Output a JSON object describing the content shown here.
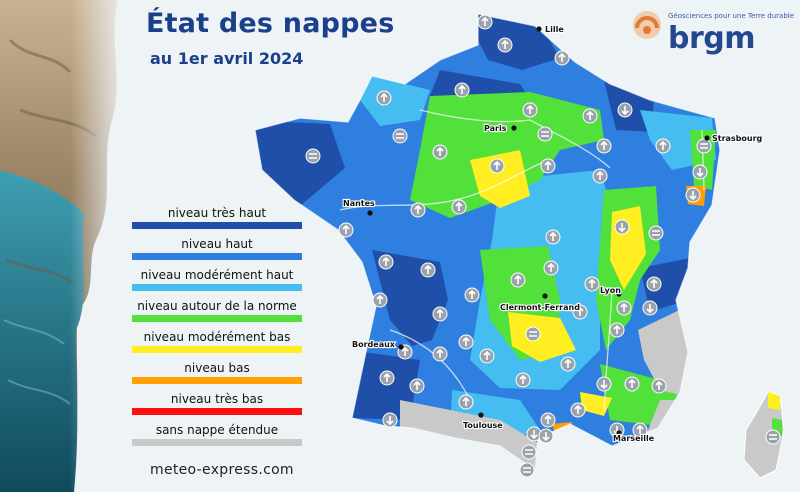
{
  "title": "État des nappes",
  "subtitle": "au 1er avril 2024",
  "logo": {
    "tagline": "Géosciences pour une Terre durable",
    "name": "brgm"
  },
  "website": "meteo-express.com",
  "colors": {
    "tres_haut": "#1f4fa8",
    "haut": "#2f7fe0",
    "moderement_haut": "#45bdf0",
    "norme": "#52e03a",
    "moderement_bas": "#ffef22",
    "bas": "#ff9f00",
    "tres_bas": "#ff1010",
    "sans_nappe": "#c9c9c9"
  },
  "legend": [
    {
      "label": "niveau très haut",
      "color": "#1f4fa8"
    },
    {
      "label": "niveau haut",
      "color": "#2f7fe0"
    },
    {
      "label": "niveau modérément haut",
      "color": "#45bdf0"
    },
    {
      "label": "niveau autour de la norme",
      "color": "#52e03a"
    },
    {
      "label": "niveau modérément bas",
      "color": "#ffef22"
    },
    {
      "label": "niveau bas",
      "color": "#ff9f00"
    },
    {
      "label": "niveau très bas",
      "color": "#ff1010"
    },
    {
      "label": "sans nappe étendue",
      "color": "#c9c9c9"
    }
  ],
  "cities": [
    "Lille",
    "Paris",
    "Strasbourg",
    "Nantes",
    "Lyon",
    "Clermont-Ferrand",
    "Bordeaux",
    "Toulouse",
    "Marseille"
  ],
  "trend_icons": {
    "up": "arrow-up-icon",
    "down": "arrow-down-icon",
    "stable": "equal-sign-icon"
  }
}
